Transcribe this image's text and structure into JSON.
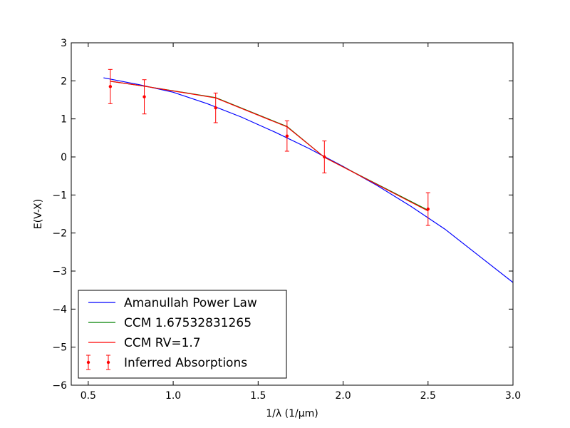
{
  "chart_data": {
    "type": "line",
    "xlabel": "1/λ (1/μm)",
    "ylabel": "E(V-X)",
    "xlim": [
      0.4,
      3.0
    ],
    "ylim": [
      -6,
      3
    ],
    "x_ticks": [
      0.5,
      1.0,
      1.5,
      2.0,
      2.5,
      3.0
    ],
    "x_tick_labels": [
      "0.5",
      "1.0",
      "1.5",
      "2.0",
      "2.5",
      "3.0"
    ],
    "y_ticks": [
      -6,
      -5,
      -4,
      -3,
      -2,
      -1,
      0,
      1,
      2,
      3
    ],
    "y_tick_labels": [
      "−6",
      "−5",
      "−4",
      "−3",
      "−2",
      "−1",
      "0",
      "1",
      "2",
      "3"
    ],
    "grid": false,
    "legend_position": "lower-left",
    "series": [
      {
        "name": "Amanullah Power Law",
        "color": "#0000ff",
        "style": "line",
        "x": [
          0.59,
          0.8,
          1.0,
          1.2,
          1.4,
          1.6,
          1.8,
          2.0,
          2.2,
          2.4,
          2.6,
          2.8,
          3.0
        ],
        "y": [
          2.08,
          1.9,
          1.7,
          1.4,
          1.05,
          0.65,
          0.22,
          -0.25,
          -0.75,
          -1.3,
          -1.9,
          -2.6,
          -3.3
        ]
      },
      {
        "name": "CCM 1.67532831265",
        "color": "#008000",
        "style": "line",
        "x": [
          0.63,
          0.83,
          1.25,
          1.67,
          1.89,
          2.5
        ],
        "y": [
          1.99,
          1.86,
          1.56,
          0.8,
          -0.01,
          -1.4
        ]
      },
      {
        "name": "CCM RV=1.7",
        "color": "#ff0000",
        "style": "line",
        "x": [
          0.63,
          0.83,
          1.25,
          1.67,
          1.89,
          2.5
        ],
        "y": [
          1.99,
          1.86,
          1.55,
          0.79,
          -0.01,
          -1.42
        ]
      },
      {
        "name": "Inferred Absorptions",
        "color": "#ff0000",
        "style": "errorbar",
        "x": [
          0.63,
          0.83,
          1.25,
          1.67,
          1.89,
          2.5
        ],
        "y": [
          1.85,
          1.58,
          1.29,
          0.55,
          0.0,
          -1.37
        ],
        "yerr": [
          0.45,
          0.45,
          0.39,
          0.4,
          0.42,
          0.43
        ]
      }
    ]
  }
}
